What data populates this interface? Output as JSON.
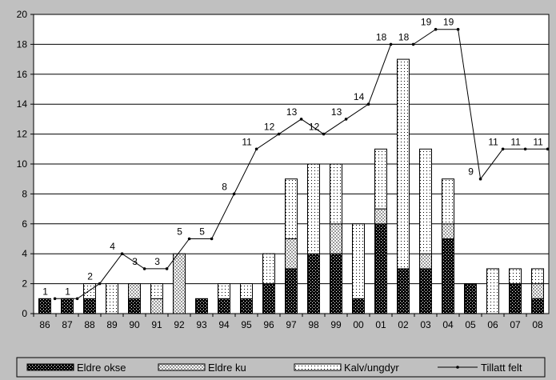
{
  "chart_data": {
    "type": "bar",
    "stacked": true,
    "categories": [
      "86",
      "87",
      "88",
      "89",
      "90",
      "91",
      "92",
      "93",
      "94",
      "95",
      "96",
      "97",
      "98",
      "99",
      "00",
      "01",
      "02",
      "03",
      "04",
      "05",
      "06",
      "07",
      "08"
    ],
    "series": [
      {
        "name": "Eldre okse",
        "kind": "bar",
        "pattern": "dark-check",
        "values": [
          1,
          1,
          1,
          0,
          1,
          0,
          0,
          1,
          1,
          1,
          2,
          3,
          4,
          4,
          1,
          6,
          3,
          3,
          5,
          2,
          0,
          2,
          1
        ]
      },
      {
        "name": "Eldre ku",
        "kind": "bar",
        "pattern": "light-check",
        "values": [
          0,
          0,
          0,
          0,
          1,
          1,
          4,
          0,
          0,
          0,
          0,
          2,
          0,
          2,
          0,
          1,
          0,
          1,
          1,
          0,
          0,
          0,
          1
        ]
      },
      {
        "name": "Kalv/ungdyr",
        "kind": "bar",
        "pattern": "dotted",
        "values": [
          0,
          0,
          1,
          2,
          0,
          1,
          0,
          0,
          1,
          1,
          2,
          4,
          6,
          4,
          5,
          4,
          14,
          7,
          3,
          0,
          3,
          1,
          1
        ]
      },
      {
        "name": "Tillatt felt",
        "kind": "line",
        "values": [
          1,
          1,
          2,
          4,
          3,
          3,
          5,
          5,
          8,
          11,
          12,
          13,
          12,
          13,
          14,
          18,
          18,
          19,
          19,
          9,
          11,
          11,
          11
        ]
      }
    ],
    "ylim": [
      0,
      20
    ],
    "yticks": [
      0,
      2,
      4,
      6,
      8,
      10,
      12,
      14,
      16,
      18,
      20
    ],
    "grid": true,
    "legend": "bottom"
  }
}
